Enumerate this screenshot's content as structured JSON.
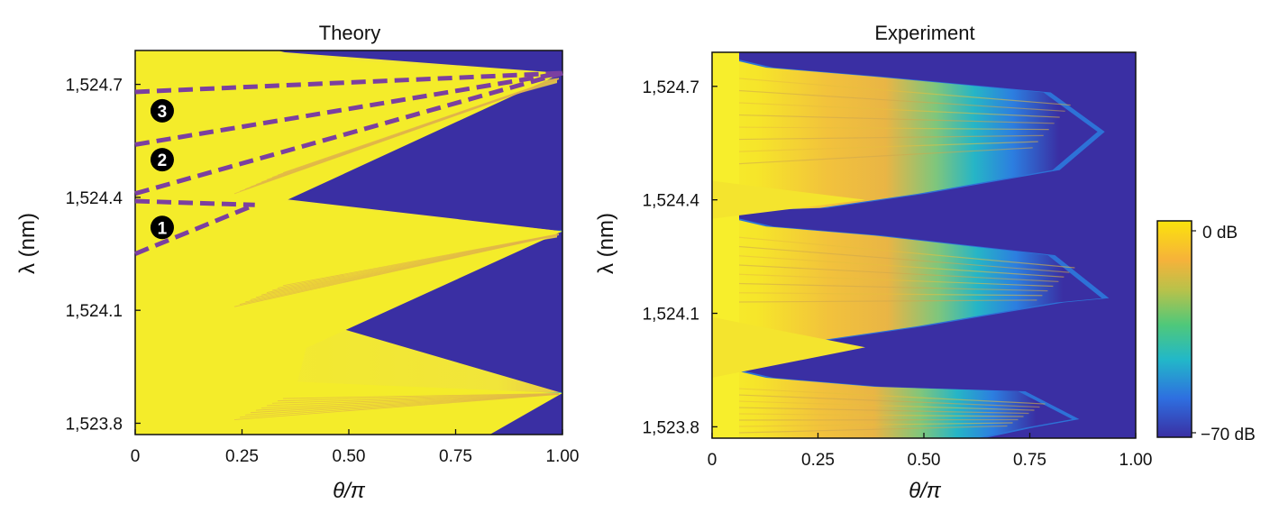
{
  "chart_data": [
    {
      "type": "heatmap",
      "title": "Theory",
      "xlabel": "θ/π",
      "ylabel": "λ (nm)",
      "xlim": [
        0,
        1.0
      ],
      "ylim": [
        1523.77,
        1524.79
      ],
      "xticks": [
        0,
        0.25,
        0.5,
        0.75,
        1.0
      ],
      "xtick_labels": [
        "0",
        "0.25",
        "0.50",
        "0.75",
        "1.00"
      ],
      "yticks": [
        1523.8,
        1524.1,
        1524.4,
        1524.7
      ],
      "ytick_labels": [
        "1,523.8",
        "1,524.1",
        "1,524.4",
        "1,524.7"
      ],
      "high_region_boundary": {
        "description_points": [
          {
            "x": 0.0,
            "y": 1523.77
          },
          {
            "x": 0.39,
            "y": 1523.9
          },
          {
            "x": 0.26,
            "y": 1524.02
          },
          {
            "x": 0.0,
            "y": 1524.05
          }
        ]
      },
      "bands": [
        {
          "lambda_low": 1523.8,
          "lambda_high": 1524.1,
          "apex_x": 1.0,
          "apex_lambda": 1523.88
        },
        {
          "lambda_low": 1524.1,
          "lambda_high": 1524.4,
          "apex_x": 1.0,
          "apex_lambda": 1524.31
        },
        {
          "lambda_low": 1524.4,
          "lambda_high": 1524.79,
          "apex_x": 1.0,
          "apex_lambda": 1524.73
        }
      ],
      "annotations": [
        {
          "label": "1",
          "x": 0.04,
          "y": 1524.32
        },
        {
          "label": "2",
          "x": 0.04,
          "y": 1524.5
        },
        {
          "label": "3",
          "x": 0.04,
          "y": 1524.63
        }
      ],
      "dashed_lines": [
        {
          "x": [
            0.0,
            1.0
          ],
          "y": [
            1524.68,
            1524.73
          ]
        },
        {
          "x": [
            0.0,
            1.0
          ],
          "y": [
            1524.54,
            1524.73
          ]
        },
        {
          "x": [
            0.0,
            1.0
          ],
          "y": [
            1524.41,
            1524.73
          ]
        },
        {
          "x": [
            0.0,
            0.28
          ],
          "y": [
            1524.39,
            1524.38
          ]
        },
        {
          "x": [
            0.0,
            0.28
          ],
          "y": [
            1524.25,
            1524.38
          ]
        }
      ],
      "dash_color": "#7B3FA0"
    },
    {
      "type": "heatmap",
      "title": "Experiment",
      "xlabel": "θ/π",
      "ylabel": "λ (nm)",
      "xlim": [
        0,
        1.0
      ],
      "ylim": [
        1523.77,
        1524.79
      ],
      "xticks": [
        0,
        0.25,
        0.5,
        0.75,
        1.0
      ],
      "xtick_labels": [
        "0",
        "0.25",
        "0.50",
        "0.75",
        "1.00"
      ],
      "yticks": [
        1523.8,
        1524.1,
        1524.4,
        1524.7
      ],
      "ytick_labels": [
        "1,523.8",
        "1,524.1",
        "1,524.4",
        "1,524.7"
      ],
      "bands": [
        {
          "lambda_low": 1523.77,
          "lambda_high": 1523.92,
          "apex_x": 0.85,
          "apex_lambda": 1523.82
        },
        {
          "lambda_low": 1524.1,
          "lambda_high": 1524.32,
          "apex_x": 0.92,
          "apex_lambda": 1524.14
        },
        {
          "lambda_low": 1524.45,
          "lambda_high": 1524.74,
          "apex_x": 0.91,
          "apex_lambda": 1524.58
        }
      ]
    }
  ],
  "colorbar": {
    "max_label": "0 dB",
    "min_label": "−70 dB",
    "range": [
      -70,
      0
    ],
    "colors": [
      "#3A2FA3",
      "#2E6FE0",
      "#22B8C8",
      "#4FC87A",
      "#B8C24A",
      "#F6B23A",
      "#FBE30C"
    ]
  },
  "colors": {
    "low": "#3A2FA3",
    "high": "#F4EC2A",
    "mid_orange": "#F0B540",
    "mid_cyan": "#27B9C4"
  }
}
